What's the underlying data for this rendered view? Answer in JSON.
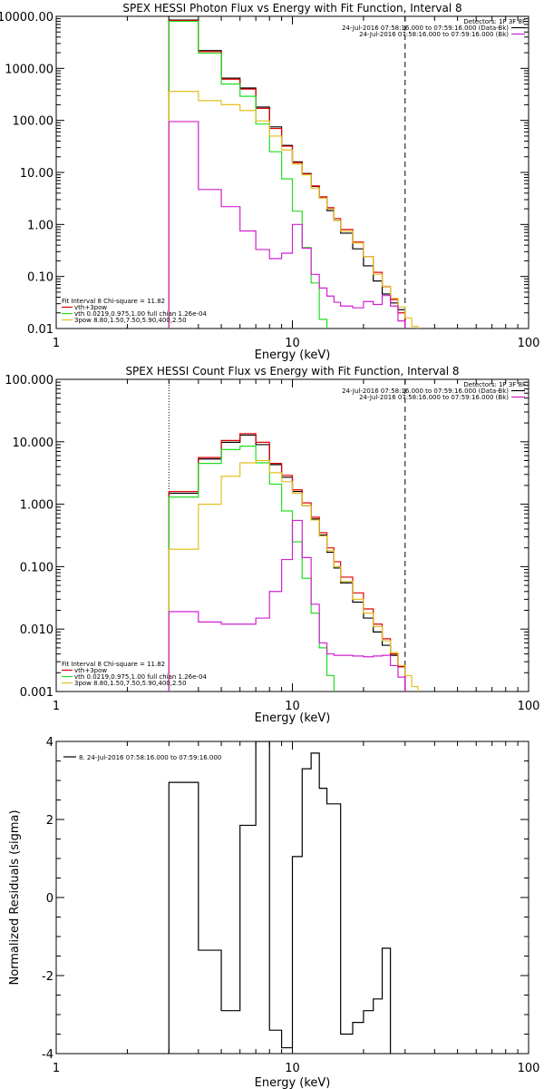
{
  "colors": {
    "black": "#000000",
    "red": "#e00000",
    "green": "#22dd22",
    "yellow": "#e0c020",
    "magenta": "#d020d0"
  },
  "chart_data": [
    {
      "type": "line",
      "title": "SPEX HESSI Photon Flux vs Energy with Fit Function, Interval 8",
      "xlabel": "Energy (keV)",
      "ylabel": "",
      "x_scale": "log",
      "y_scale": "log",
      "xlim": [
        1,
        100
      ],
      "ylim": [
        0.01,
        10000
      ],
      "x_ticks": [
        "1",
        "10",
        "100"
      ],
      "y_ticks": [
        "10000.00",
        "1000.00",
        "100.00",
        "10.00",
        "1.00",
        "0.10",
        "0.01"
      ],
      "detectors_label": "Detectors: 1F 3F 8F",
      "legend_top": [
        {
          "text": "24-Jul-2016 07:58:16.000 to 07:59:16.000 (Data-Bk)",
          "color": "#000000"
        },
        {
          "text": "24-Jul-2016 07:58:16.000 to 07:59:16.000 (Bk)",
          "color": "#d020d0"
        }
      ],
      "legend_bottom": [
        {
          "text": "Fit Interval 8   Chi-square = 11.82",
          "color": "#000000"
        },
        {
          "text": "vth+3pow",
          "color": "#e00000"
        },
        {
          "text": "vth 0.0219,0.975,1.00   full chian 1.26e-04",
          "color": "#22dd22"
        },
        {
          "text": "3pow 8.80,1.50,7.50,5.90,400,2.50",
          "color": "#e0c020"
        }
      ],
      "vlines": [
        {
          "x": 3.0,
          "style": "dotted"
        },
        {
          "x": 30,
          "style": "dashed"
        }
      ],
      "edges": [
        3.0,
        3.5,
        4.0,
        4.5,
        5.0,
        5.5,
        6.0,
        6.5,
        7.0,
        7.5,
        8.0,
        8.5,
        9.0,
        9.5,
        10.0,
        11.0,
        12.0,
        13.0,
        14.0,
        15.0,
        16.0,
        18.0,
        20.0,
        22.0,
        24.0,
        26.0,
        28.0,
        30.0,
        32.0,
        34.0,
        36.0
      ],
      "series": [
        {
          "color": "#000000",
          "values": [
            8500,
            8500,
            2200,
            2200,
            650,
            650,
            420,
            420,
            180,
            180,
            75,
            75,
            33,
            33,
            16,
            9.5,
            5.4,
            3.2,
            1.85,
            1.2,
            0.68,
            0.34,
            0.16,
            0.082,
            0.046,
            0.031,
            0.023,
            null,
            null,
            null
          ]
        },
        {
          "color": "#e00000",
          "values": [
            8300,
            8300,
            2100,
            2100,
            620,
            620,
            400,
            400,
            170,
            170,
            70,
            70,
            32,
            32,
            15.5,
            9.3,
            5.5,
            3.4,
            2.1,
            1.3,
            0.8,
            0.46,
            0.24,
            0.12,
            0.064,
            0.036,
            0.02,
            null,
            null,
            null
          ]
        },
        {
          "color": "#22dd22",
          "values": [
            8000,
            8000,
            1950,
            1950,
            500,
            500,
            290,
            290,
            85,
            85,
            25,
            25,
            7.5,
            7.5,
            1.8,
            0.36,
            0.075,
            0.015,
            0.005,
            null,
            null,
            null,
            null,
            null,
            null,
            null,
            null,
            null,
            null,
            null
          ]
        },
        {
          "color": "#e0c020",
          "values": [
            360,
            360,
            240,
            240,
            200,
            200,
            155,
            155,
            98,
            98,
            50,
            50,
            27,
            27,
            14.5,
            9.0,
            5.0,
            3.2,
            2.0,
            1.2,
            0.74,
            0.44,
            0.24,
            0.11,
            0.065,
            0.038,
            0.026,
            0.016,
            0.011,
            null
          ]
        },
        {
          "color": "#d020d0",
          "values": [
            95,
            95,
            4.7,
            4.7,
            2.2,
            2.2,
            0.75,
            0.75,
            0.33,
            0.33,
            0.22,
            0.22,
            0.28,
            0.28,
            1.0,
            0.35,
            0.11,
            0.06,
            0.042,
            0.032,
            0.027,
            0.025,
            0.033,
            0.029,
            0.043,
            0.027,
            0.014,
            null,
            null,
            null
          ]
        }
      ]
    },
    {
      "type": "line",
      "title": "SPEX HESSI Count Flux vs Energy with Fit Function, Interval 8",
      "xlabel": "Energy (keV)",
      "ylabel": "",
      "x_scale": "log",
      "y_scale": "log",
      "xlim": [
        1,
        100
      ],
      "ylim": [
        0.001,
        100
      ],
      "x_ticks": [
        "1",
        "10",
        "100"
      ],
      "y_ticks": [
        "100.000",
        "10.000",
        "1.000",
        "0.100",
        "0.010",
        "0.001"
      ],
      "detectors_label": "Detectors: 1F 3F 8F",
      "legend_top": [
        {
          "text": "24-Jul-2016 07:58:16.000 to 07:59:16.000 (Data-Bk)",
          "color": "#000000"
        },
        {
          "text": "24-Jul-2016 07:58:16.000 to 07:59:16.000 (Bk)",
          "color": "#d020d0"
        }
      ],
      "legend_bottom": [
        {
          "text": "Fit Interval 8   Chi-square = 11.82",
          "color": "#000000"
        },
        {
          "text": "vth+3pow",
          "color": "#e00000"
        },
        {
          "text": "vth 0.0219,0.975,1.00   full chian 1.26e-04",
          "color": "#22dd22"
        },
        {
          "text": "3pow 8.80,1.50,7.50,5.90,400,2.50",
          "color": "#e0c020"
        }
      ],
      "vlines": [
        {
          "x": 3.0,
          "style": "dotted"
        },
        {
          "x": 30,
          "style": "dashed"
        }
      ],
      "edges": [
        3.0,
        3.5,
        4.0,
        4.5,
        5.0,
        5.5,
        6.0,
        6.5,
        7.0,
        7.5,
        8.0,
        8.5,
        9.0,
        9.5,
        10.0,
        11.0,
        12.0,
        13.0,
        14.0,
        15.0,
        16.0,
        18.0,
        20.0,
        22.0,
        24.0,
        26.0,
        28.0,
        30.0,
        32.0,
        34.0,
        36.0,
        38.0
      ],
      "series": [
        {
          "color": "#000000",
          "values": [
            1.5,
            1.5,
            5.3,
            5.3,
            9.8,
            9.8,
            12.8,
            12.8,
            9.0,
            9.0,
            4.3,
            4.3,
            2.7,
            2.7,
            1.6,
            0.95,
            0.58,
            0.32,
            0.17,
            0.095,
            0.055,
            0.027,
            0.015,
            0.009,
            0.0055,
            0.0038,
            0.0025,
            null,
            null,
            null,
            null
          ]
        },
        {
          "color": "#e00000",
          "values": [
            1.6,
            1.6,
            5.6,
            5.6,
            10.5,
            10.5,
            13.5,
            13.5,
            9.8,
            9.8,
            4.5,
            4.5,
            2.9,
            2.9,
            1.7,
            1.05,
            0.62,
            0.35,
            0.2,
            0.12,
            0.068,
            0.038,
            0.021,
            0.012,
            0.007,
            0.004,
            0.0025,
            null,
            null,
            null,
            null
          ]
        },
        {
          "color": "#22dd22",
          "values": [
            1.3,
            1.3,
            4.5,
            4.5,
            7.5,
            7.5,
            8.5,
            8.5,
            4.6,
            4.6,
            2.1,
            2.1,
            0.78,
            0.78,
            0.25,
            0.065,
            0.018,
            0.005,
            0.0018,
            0.0009,
            null,
            null,
            null,
            null,
            null,
            null,
            null,
            null,
            null,
            null,
            null
          ]
        },
        {
          "color": "#e0c020",
          "values": [
            0.19,
            0.19,
            1.0,
            1.0,
            2.8,
            2.8,
            4.6,
            4.6,
            5.0,
            5.0,
            3.2,
            3.2,
            2.3,
            2.3,
            1.5,
            0.95,
            0.56,
            0.31,
            0.18,
            0.1,
            0.058,
            0.03,
            0.018,
            0.011,
            0.0065,
            0.0042,
            0.0026,
            0.0018,
            0.0012,
            0.0009,
            null
          ]
        },
        {
          "color": "#d020d0",
          "values": [
            0.019,
            0.019,
            0.013,
            0.013,
            0.012,
            0.012,
            0.012,
            0.012,
            0.015,
            0.015,
            0.04,
            0.04,
            0.13,
            0.13,
            0.55,
            0.14,
            0.025,
            0.006,
            0.004,
            0.0038,
            0.0038,
            0.0037,
            0.0036,
            0.0037,
            0.0038,
            0.0026,
            0.0017,
            null,
            null,
            null,
            null
          ]
        }
      ]
    },
    {
      "type": "line",
      "title": "",
      "xlabel": "Energy (keV)",
      "ylabel": "Normalized Residuals (sigma)",
      "x_scale": "log",
      "y_scale": "linear",
      "xlim": [
        1,
        100
      ],
      "ylim": [
        -4,
        4
      ],
      "x_ticks": [
        "1",
        "10",
        "100"
      ],
      "y_ticks": [
        "4",
        "2",
        "0",
        "-2",
        "-4"
      ],
      "legend_top": [
        {
          "text": "8. 24-Jul-2016 07:58:16.000 to 07:59:16.000",
          "color": "#000000"
        }
      ],
      "edges": [
        3.0,
        4.0,
        5.0,
        6.0,
        7.0,
        8.0,
        9.0,
        10.0,
        11.0,
        12.0,
        13.0,
        14.0,
        16.0,
        18.0,
        20.0,
        22.0,
        24.0,
        26.0,
        28.0,
        30.0
      ],
      "series": [
        {
          "color": "#000000",
          "values": [
            2.95,
            -1.35,
            -2.9,
            1.85,
            4.0,
            -3.4,
            -3.85,
            1.05,
            3.3,
            3.7,
            2.8,
            2.4,
            -3.5,
            -3.2,
            -2.9,
            -2.6,
            -1.3,
            null,
            null
          ]
        }
      ]
    }
  ]
}
